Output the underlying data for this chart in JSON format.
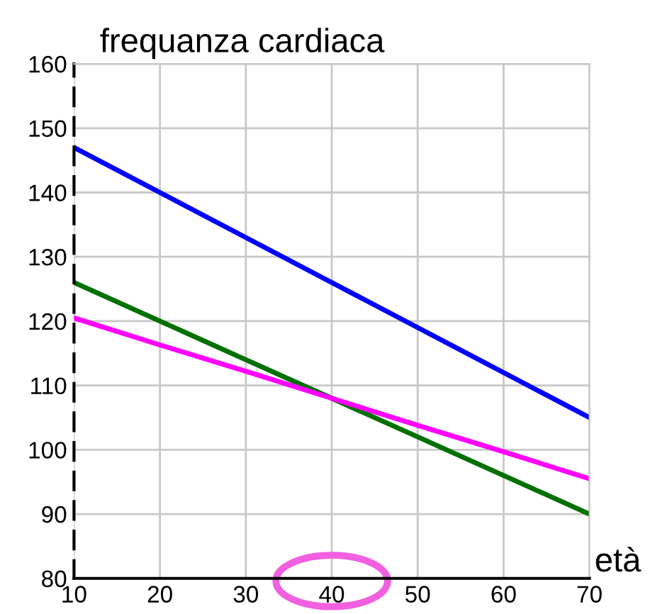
{
  "chart_data": {
    "type": "line",
    "title": "frequanza cardiaca",
    "xlabel": "età",
    "xlim": [
      10,
      70
    ],
    "xticks": [
      10,
      20,
      30,
      40,
      50,
      60,
      70
    ],
    "ylim": [
      80,
      160
    ],
    "yticks": [
      80,
      90,
      100,
      110,
      120,
      130,
      140,
      150,
      160
    ],
    "grid": true,
    "x": [
      10,
      20,
      30,
      40,
      50,
      60,
      70
    ],
    "marker": "none",
    "line_style": "solid",
    "series": [
      {
        "color": "#0000ff",
        "values": [
          147,
          140,
          133,
          126,
          119,
          112,
          105
        ]
      },
      {
        "color": "#007000",
        "values": [
          126,
          120,
          114,
          108,
          102,
          96,
          90
        ]
      },
      {
        "color": "#ff00ff",
        "values": [
          120.5,
          116.3,
          112.2,
          108,
          103.8,
          99.7,
          95.5
        ]
      }
    ]
  }
}
